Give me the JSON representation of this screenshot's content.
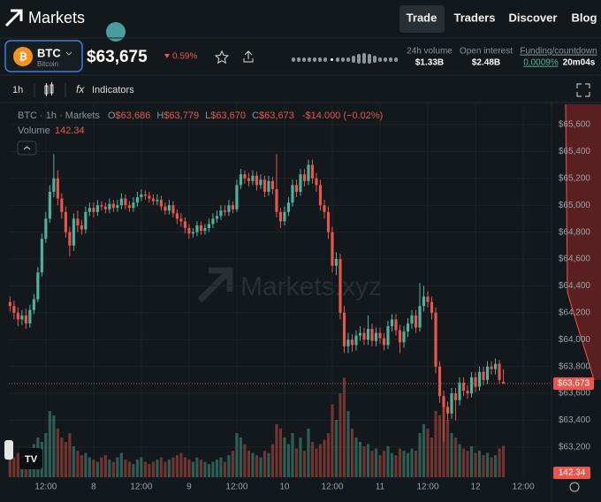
{
  "header": {
    "brand": "Markets",
    "nav": [
      "Trade",
      "Traders",
      "Discover",
      "Blog"
    ]
  },
  "ticker": {
    "symbol": "BTC",
    "name": "Bitcoin",
    "price": "$63,675",
    "change": "0.59%",
    "stats": [
      {
        "label": "24h volume",
        "value": "$1.33B"
      },
      {
        "label": "Open interest",
        "value": "$2.48B"
      },
      {
        "label": "Funding/countdown",
        "value": "0.0009%",
        "extra": "20m04s"
      }
    ]
  },
  "toolbar": {
    "interval": "1h",
    "indicators": "Indicators"
  },
  "chart_data": {
    "type": "candlestick",
    "title": "BTC · 1h · Markets",
    "ohlc_labels": [
      "O",
      "H",
      "L",
      "C"
    ],
    "ohlc_values": [
      "$63,686",
      "$63,779",
      "$63,670",
      "$63,673"
    ],
    "change": "-$14.000 (−0.02%)",
    "volume_label": "Volume",
    "watermark": "Markets.xyz",
    "last_close_label": "$63,673",
    "up_color": "#4db39e",
    "down_color": "#e8564d",
    "grid": true,
    "xlim": [
      2.7,
      139.1
    ],
    "ylim": [
      62976,
      65751
    ],
    "vlim": [
      0,
      520
    ],
    "xticks": [
      {
        "value": 12,
        "label": "12:00"
      },
      {
        "value": 24,
        "label": "8"
      },
      {
        "value": 36,
        "label": "12:00"
      },
      {
        "value": 48,
        "label": "9"
      },
      {
        "value": 60,
        "label": "12:00"
      },
      {
        "value": 72,
        "label": "10"
      },
      {
        "value": 84,
        "label": "12:00"
      },
      {
        "value": 96,
        "label": "11"
      },
      {
        "value": 108,
        "label": "12:00"
      },
      {
        "value": 120,
        "label": "12"
      },
      {
        "value": 132,
        "label": "12:00"
      }
    ],
    "yticks": [
      {
        "value": 63200,
        "label": "$63,200"
      },
      {
        "value": 63400,
        "label": "$63,400"
      },
      {
        "value": 63600,
        "label": "$63,600"
      },
      {
        "value": 63800,
        "label": "$63,800"
      },
      {
        "value": 64000,
        "label": "$64,000"
      },
      {
        "value": 64200,
        "label": "$64,200"
      },
      {
        "value": 64400,
        "label": "$64,400"
      },
      {
        "value": 64600,
        "label": "$64,600"
      },
      {
        "value": 64800,
        "label": "$64,800"
      },
      {
        "value": 65000,
        "label": "$65,000"
      },
      {
        "value": 65200,
        "label": "$65,200"
      },
      {
        "value": 65400,
        "label": "$65,400"
      },
      {
        "value": 65600,
        "label": "$65,600"
      }
    ],
    "x": [
      3,
      4,
      5,
      6,
      7,
      8,
      9,
      10,
      11,
      12,
      13,
      14,
      15,
      16,
      17,
      18,
      19,
      20,
      21,
      22,
      23,
      24,
      25,
      26,
      27,
      28,
      29,
      30,
      31,
      32,
      33,
      34,
      35,
      36,
      37,
      38,
      39,
      40,
      41,
      42,
      43,
      44,
      45,
      46,
      47,
      48,
      49,
      50,
      51,
      52,
      53,
      54,
      55,
      56,
      57,
      58,
      59,
      60,
      61,
      62,
      63,
      64,
      65,
      66,
      67,
      68,
      69,
      70,
      71,
      72,
      73,
      74,
      75,
      76,
      77,
      78,
      79,
      80,
      81,
      82,
      83,
      84,
      85,
      86,
      87,
      88,
      89,
      90,
      91,
      92,
      93,
      94,
      95,
      96,
      97,
      98,
      99,
      100,
      101,
      102,
      103,
      104,
      105,
      106,
      107,
      108,
      109,
      110,
      111,
      112,
      113,
      114,
      115,
      116,
      117,
      118,
      119,
      120,
      121,
      122,
      123,
      124,
      125,
      126,
      127
    ],
    "open": [
      64280,
      64250,
      64200,
      64150,
      64180,
      64120,
      64220,
      64300,
      64500,
      64750,
      64900,
      65100,
      65200,
      65050,
      64950,
      64800,
      64700,
      64900,
      64850,
      64820,
      64950,
      64980,
      64950,
      65000,
      64990,
      64970,
      65010,
      64980,
      65000,
      65050,
      65000,
      64980,
      65020,
      65060,
      65080,
      65070,
      65050,
      65030,
      65040,
      64990,
      64960,
      65000,
      64940,
      64900,
      64880,
      64830,
      64790,
      64800,
      64850,
      64810,
      64830,
      64860,
      64900,
      64920,
      64960,
      64950,
      65000,
      64970,
      65150,
      65230,
      65200,
      65180,
      65220,
      65150,
      65190,
      65100,
      65180,
      65120,
      64950,
      64880,
      64950,
      65020,
      65150,
      65100,
      65230,
      65180,
      65300,
      65200,
      65150,
      65000,
      64950,
      64800,
      64550,
      64600,
      64200,
      63950,
      64000,
      63960,
      64030,
      64050,
      64000,
      64080,
      63990,
      64050,
      64010,
      63960,
      64100,
      64150,
      64070,
      63980,
      64060,
      64120,
      64180,
      64090,
      64250,
      64320,
      64280,
      64200,
      63800,
      63580,
      63500,
      63450,
      63600,
      63550,
      63680,
      63620,
      63600,
      63720,
      63650,
      63760,
      63700,
      63800,
      63780,
      63820,
      63686
    ],
    "high": [
      64320,
      64290,
      64240,
      64220,
      64230,
      64260,
      64340,
      64540,
      64790,
      64950,
      65150,
      65380,
      65260,
      65090,
      64990,
      64840,
      64940,
      64960,
      64890,
      64990,
      65020,
      65020,
      65040,
      65030,
      65020,
      65050,
      65040,
      65040,
      65090,
      65080,
      65030,
      65060,
      65100,
      65120,
      65110,
      65100,
      65080,
      65080,
      65070,
      65020,
      65040,
      65030,
      64970,
      64940,
      64910,
      64860,
      64830,
      64880,
      64880,
      64860,
      64900,
      64940,
      64960,
      65000,
      65000,
      65040,
      65030,
      65190,
      65270,
      65260,
      65240,
      65260,
      65250,
      65230,
      65220,
      65220,
      65210,
      65380,
      64980,
      64990,
      65060,
      65190,
      65190,
      65270,
      65270,
      65340,
      65340,
      65240,
      65190,
      65040,
      64990,
      64840,
      64650,
      64640,
      64250,
      64050,
      64040,
      64070,
      64100,
      64090,
      64180,
      64120,
      64090,
      64090,
      64050,
      64140,
      64190,
      64190,
      64110,
      64100,
      64160,
      64220,
      64220,
      64420,
      64400,
      64360,
      64320,
      64240,
      63840,
      63620,
      63540,
      63640,
      63640,
      63720,
      63720,
      63660,
      63760,
      63760,
      63800,
      63800,
      63840,
      63840,
      63860,
      63850,
      63779
    ],
    "low": [
      64210,
      64150,
      64100,
      64110,
      64080,
      64090,
      64190,
      64280,
      64470,
      64720,
      64870,
      65060,
      65000,
      64900,
      64760,
      64620,
      64660,
      64800,
      64780,
      64790,
      64920,
      64910,
      64920,
      64960,
      64940,
      64940,
      64950,
      64950,
      64970,
      64970,
      64950,
      64950,
      64990,
      65030,
      65040,
      65020,
      65000,
      65000,
      64960,
      64930,
      64930,
      64910,
      64860,
      64840,
      64790,
      64750,
      64760,
      64770,
      64780,
      64780,
      64800,
      64830,
      64870,
      64890,
      64920,
      64920,
      64940,
      64950,
      65120,
      65160,
      65140,
      65150,
      65110,
      65120,
      65060,
      65070,
      65080,
      64910,
      64830,
      64850,
      64920,
      64990,
      65060,
      65070,
      65140,
      65150,
      65160,
      65100,
      64960,
      64900,
      64750,
      64500,
      64480,
      64150,
      63900,
      63900,
      63910,
      63920,
      63990,
      63960,
      63960,
      63950,
      63950,
      63970,
      63920,
      63930,
      64060,
      64030,
      63900,
      63940,
      64020,
      64080,
      64050,
      64060,
      64210,
      64240,
      64150,
      63750,
      63530,
      63240,
      63400,
      63410,
      63400,
      63510,
      63580,
      63560,
      63570,
      63610,
      63620,
      63660,
      63670,
      63740,
      63740,
      63670,
      63670
    ],
    "close": [
      64250,
      64200,
      64150,
      64180,
      64120,
      64220,
      64300,
      64500,
      64750,
      64900,
      65100,
      65200,
      65050,
      64950,
      64800,
      64700,
      64900,
      64850,
      64820,
      64950,
      64980,
      64950,
      65000,
      64990,
      64970,
      65010,
      64980,
      65000,
      65050,
      65000,
      64980,
      65020,
      65060,
      65080,
      65070,
      65050,
      65030,
      65040,
      64990,
      64960,
      65000,
      64940,
      64900,
      64880,
      64830,
      64790,
      64800,
      64850,
      64810,
      64830,
      64860,
      64900,
      64920,
      64960,
      64950,
      65000,
      64970,
      65150,
      65230,
      65200,
      65180,
      65220,
      65150,
      65190,
      65100,
      65180,
      65120,
      64950,
      64880,
      64950,
      65020,
      65150,
      65100,
      65230,
      65180,
      65300,
      65200,
      65150,
      65000,
      64950,
      64800,
      64550,
      64600,
      64200,
      63950,
      64000,
      63960,
      64030,
      64050,
      64000,
      64080,
      63990,
      64050,
      64010,
      63960,
      64100,
      64150,
      64070,
      63980,
      64060,
      64120,
      64180,
      64090,
      64250,
      64320,
      64280,
      64200,
      63800,
      63580,
      63500,
      63450,
      63600,
      63550,
      63680,
      63620,
      63600,
      63720,
      63650,
      63760,
      63700,
      63800,
      63780,
      63820,
      63700,
      63673
    ],
    "volume": [
      120,
      90,
      110,
      80,
      100,
      130,
      150,
      180,
      160,
      200,
      300,
      280,
      220,
      180,
      160,
      200,
      140,
      120,
      100,
      110,
      90,
      80,
      70,
      90,
      100,
      80,
      70,
      90,
      110,
      80,
      70,
      60,
      80,
      90,
      70,
      60,
      70,
      80,
      90,
      70,
      80,
      90,
      100,
      110,
      90,
      80,
      70,
      90,
      80,
      70,
      60,
      70,
      80,
      90,
      70,
      100,
      120,
      200,
      180,
      150,
      120,
      110,
      100,
      90,
      120,
      110,
      150,
      240,
      220,
      180,
      150,
      200,
      130,
      180,
      120,
      220,
      160,
      130,
      150,
      170,
      200,
      330,
      260,
      380,
      450,
      300,
      220,
      180,
      160,
      140,
      150,
      120,
      130,
      100,
      120,
      140,
      110,
      100,
      130,
      120,
      110,
      130,
      120,
      200,
      240,
      220,
      180,
      300,
      280,
      320,
      260,
      200,
      180,
      150,
      130,
      120,
      140,
      110,
      120,
      100,
      110,
      90,
      100,
      130,
      142.34
    ]
  }
}
